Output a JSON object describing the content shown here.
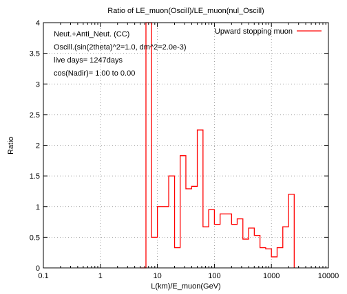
{
  "chart_data": {
    "type": "line",
    "title": "Ratio of LE_muon(Oscill)/LE_muon(nul_Oscill)",
    "xlabel": "L(km)/E_muon(GeV)",
    "ylabel": "Ratio",
    "x_scale": "log",
    "xlim": [
      0.1,
      10000
    ],
    "ylim": [
      0,
      4
    ],
    "x_ticks": [
      0.1,
      1,
      10,
      100,
      1000,
      10000
    ],
    "x_tick_labels": [
      "0.1",
      "1",
      "10",
      "100",
      "1000",
      "10000"
    ],
    "y_ticks": [
      0,
      0.5,
      1,
      1.5,
      2,
      2.5,
      3,
      3.5,
      4
    ],
    "y_tick_labels": [
      "0",
      "0.5",
      "1",
      "1.5",
      "2",
      "2.5",
      "3",
      "3.5",
      "4"
    ],
    "grid": true,
    "legend_position": "top-right",
    "annotations": [
      "Neut.+Anti_Neut. (CC)",
      "Oscill.(sin(2theta)^2=1.0, dm^2=2.0e-3)",
      "live days= 1247days",
      "cos(Nadir)= 1.00 to 0.00"
    ],
    "series": [
      {
        "name": "Upward stopping muon",
        "color": "#ff0000",
        "style": "histogram-step",
        "x": [
          5.0,
          6.3,
          7.9,
          10.0,
          12.6,
          15.8,
          20.0,
          25.1,
          31.6,
          39.8,
          50.1,
          63.1,
          79.4,
          100,
          126,
          158,
          200,
          251,
          316,
          398,
          501,
          631,
          794,
          1000,
          1259,
          1585,
          1995,
          2512
        ],
        "y": [
          0,
          4.0,
          0.5,
          1.0,
          1.0,
          1.5,
          0.33,
          1.83,
          1.29,
          1.33,
          2.25,
          0.67,
          0.95,
          0.71,
          0.88,
          0.88,
          0.71,
          0.8,
          0.47,
          0.65,
          0.53,
          0.33,
          0.31,
          0.18,
          0.33,
          0.67,
          1.2,
          0.1
        ]
      }
    ]
  }
}
